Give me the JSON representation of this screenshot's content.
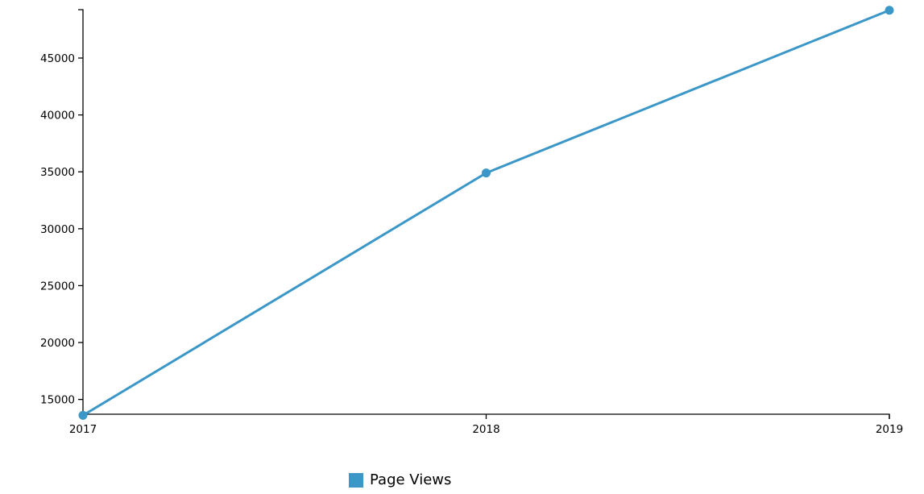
{
  "chart_data": {
    "type": "line",
    "title": "",
    "xlabel": "",
    "ylabel": "",
    "x": [
      "2017",
      "2018",
      "2019"
    ],
    "series": [
      {
        "name": "Page Views",
        "values": [
          13600,
          34900,
          49200
        ],
        "color": "#3a97c8"
      }
    ],
    "ylim": [
      13700,
      49250
    ],
    "yticks": [
      15000,
      20000,
      25000,
      30000,
      35000,
      40000,
      45000
    ],
    "grid": false,
    "legend_position": "bottom"
  },
  "legend": {
    "label": "Page Views"
  }
}
